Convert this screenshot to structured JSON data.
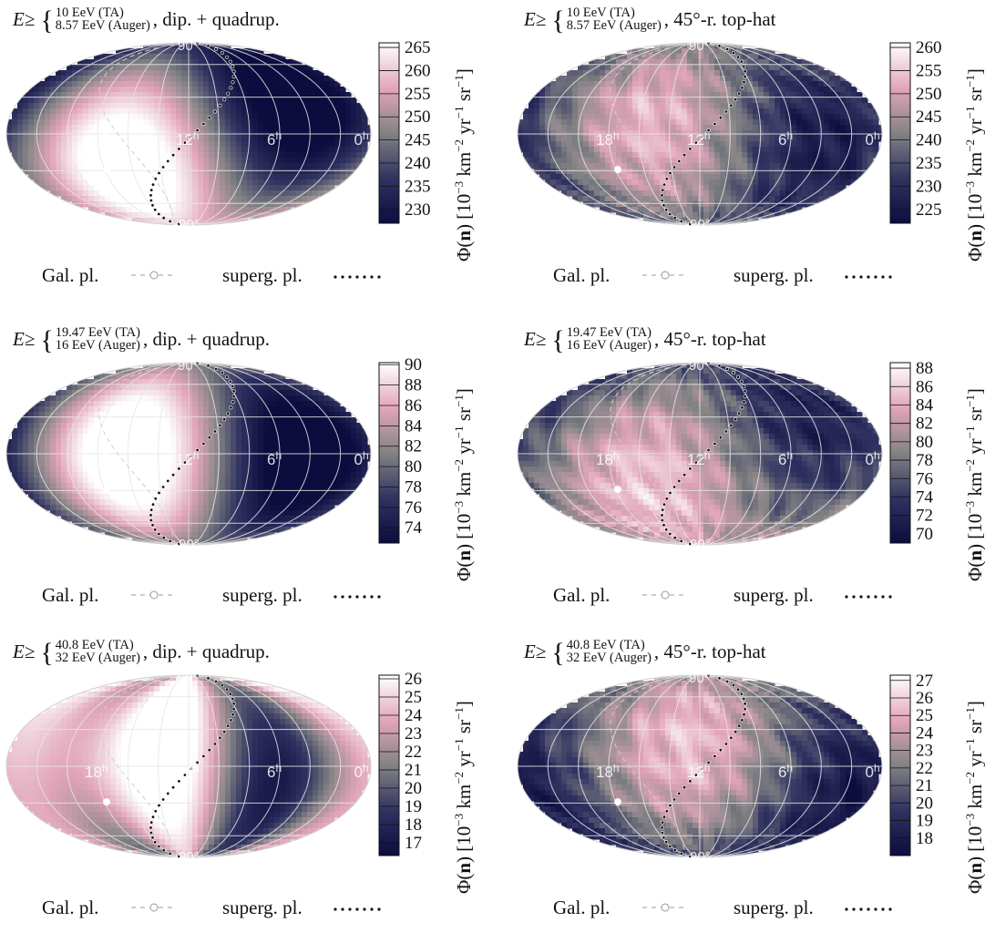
{
  "legend": {
    "galactic": "Gal. pl.",
    "supergalactic": "superg. pl."
  },
  "axis": {
    "ra_labels": [
      "18",
      "12",
      "6",
      "0"
    ],
    "ra_unit": "h",
    "dec_north": "90°",
    "dec_south": "-90°"
  },
  "colorbar_label": {
    "prefix": "Φ(",
    "bold": "n",
    "unit": ") [10",
    "e1": "−3",
    "km": " km",
    "e2": "−2",
    "yr": " yr",
    "e3": "−1",
    "sr": " sr",
    "e4": "−1",
    "close": "]"
  },
  "colors": {
    "low": "#0d0d40",
    "mid": "#8a8a8a",
    "high": "#ffffff",
    "pink": "#f2b6c8",
    "grid": "#e6e6e6"
  },
  "chart_data": [
    {
      "type": "heatmap",
      "projection": "mollweide",
      "row": 1,
      "title": {
        "prefix": "E ≥ ",
        "ta": "10 EeV (TA)",
        "auger": "8.57 EeV (Auger)",
        "suffix": ", dip. + quadrup."
      },
      "model": "dip. + quadrup.",
      "colorbar": {
        "ticks": [
          230,
          235,
          240,
          245,
          250,
          255,
          260,
          265
        ],
        "range": [
          227,
          266
        ]
      }
    },
    {
      "type": "heatmap",
      "projection": "mollweide",
      "row": 1,
      "title": {
        "prefix": "E ≥ ",
        "ta": "10 EeV (TA)",
        "auger": "8.57 EeV (Auger)",
        "suffix": ", 45°-r. top-hat"
      },
      "model": "45°-r. top-hat",
      "colorbar": {
        "ticks": [
          225,
          230,
          235,
          240,
          245,
          250,
          255,
          260
        ],
        "range": [
          222,
          261
        ]
      }
    },
    {
      "type": "heatmap",
      "projection": "mollweide",
      "row": 2,
      "title": {
        "prefix": "E ≥ ",
        "ta": "19.47 EeV (TA)",
        "auger": "16 EeV (Auger)",
        "suffix": ", dip. + quadrup."
      },
      "model": "dip. + quadrup.",
      "colorbar": {
        "ticks": [
          74,
          76,
          78,
          80,
          82,
          84,
          86,
          88,
          90
        ],
        "range": [
          72.5,
          90.2
        ]
      }
    },
    {
      "type": "heatmap",
      "projection": "mollweide",
      "row": 2,
      "title": {
        "prefix": "E ≥ ",
        "ta": "19.47 EeV (TA)",
        "auger": "16 EeV (Auger)",
        "suffix": ", 45°-r. top-hat"
      },
      "model": "45°-r. top-hat",
      "colorbar": {
        "ticks": [
          70,
          72,
          74,
          76,
          78,
          80,
          82,
          84,
          86,
          88
        ],
        "range": [
          69,
          88.6
        ]
      }
    },
    {
      "type": "heatmap",
      "projection": "mollweide",
      "row": 3,
      "title": {
        "prefix": "E ≥ ",
        "ta": "40.8 EeV (TA)",
        "auger": "32 EeV (Auger)",
        "suffix": ", dip. + quadrup."
      },
      "model": "dip. + quadrup.",
      "colorbar": {
        "ticks": [
          17,
          18,
          19,
          20,
          21,
          22,
          23,
          24,
          25,
          26
        ],
        "range": [
          16.3,
          26.2
        ]
      }
    },
    {
      "type": "heatmap",
      "projection": "mollweide",
      "row": 3,
      "title": {
        "prefix": "E ≥ ",
        "ta": "40.8 EeV (TA)",
        "auger": "32 EeV (Auger)",
        "suffix": ", 45°-r. top-hat"
      },
      "model": "45°-r. top-hat",
      "colorbar": {
        "ticks": [
          18,
          19,
          20,
          21,
          22,
          23,
          24,
          25,
          26,
          27
        ],
        "range": [
          17,
          27.3
        ]
      }
    }
  ]
}
